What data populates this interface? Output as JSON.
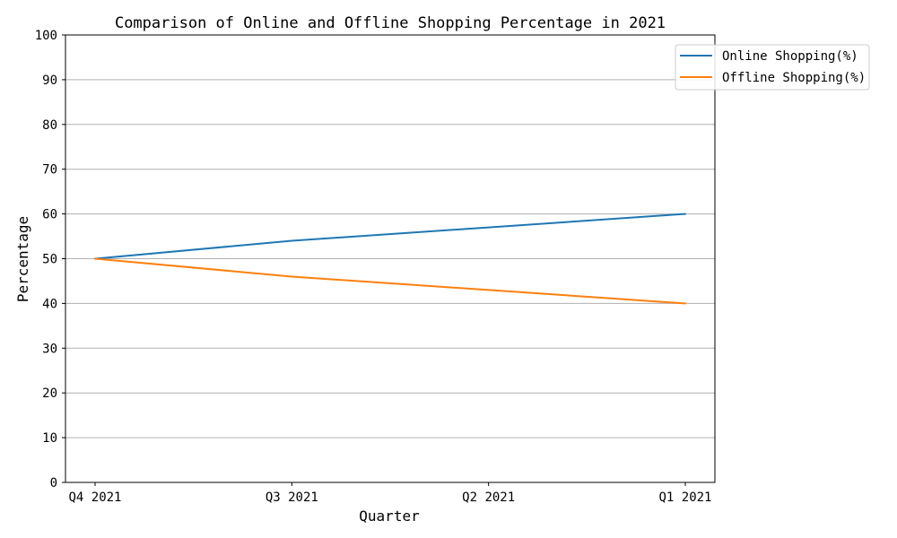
{
  "chart_data": {
    "type": "line",
    "title": "Comparison of Online and Offline Shopping Percentage in 2021",
    "xlabel": "Quarter",
    "ylabel": "Percentage",
    "categories": [
      "Q4 2021",
      "Q3 2021",
      "Q2 2021",
      "Q1 2021"
    ],
    "ylim": [
      0,
      100
    ],
    "yticks": [
      0,
      10,
      20,
      30,
      40,
      50,
      60,
      70,
      80,
      90,
      100
    ],
    "grid": "horizontal",
    "legend_position": "top-right",
    "series": [
      {
        "name": "Online Shopping(%)",
        "values": [
          50,
          54,
          57,
          60
        ],
        "color": "#1f77b4"
      },
      {
        "name": "Offline Shopping(%)",
        "values": [
          50,
          46,
          43,
          40
        ],
        "color": "#ff7f0e"
      }
    ]
  }
}
